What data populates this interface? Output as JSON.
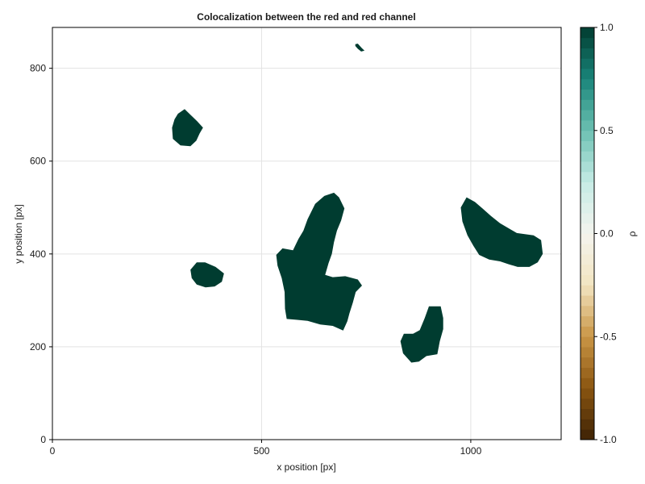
{
  "chart_data": {
    "type": "heatmap",
    "title": "Colocalization between the red and red channel",
    "xlabel": "x position [px]",
    "ylabel": "y position [px]",
    "xlim": [
      0,
      1216
    ],
    "ylim": [
      0,
      888
    ],
    "x_ticks": [
      0,
      500,
      1000
    ],
    "y_ticks": [
      0,
      200,
      400,
      600,
      800
    ],
    "grid": true,
    "colorbar": {
      "label": "ρ",
      "range": [
        -1.0,
        1.0
      ],
      "ticks": [
        "-1.0",
        "-0.5",
        "0.0",
        "0.5",
        "1.0"
      ],
      "colormap": "BrBG",
      "stops": [
        "#3d2205",
        "#8a5510",
        "#c99545",
        "#f2e4c0",
        "#f4f4ee",
        "#c5ebe5",
        "#6cc0b2",
        "#1a857a",
        "#003c30"
      ]
    },
    "regions": [
      {
        "value": 1.0,
        "outline": [
          [
            730,
            853
          ],
          [
            740,
            843
          ],
          [
            746,
            838
          ],
          [
            738,
            836
          ],
          [
            730,
            842
          ],
          [
            724,
            848
          ],
          [
            724,
            852
          ]
        ]
      },
      {
        "value": 1.0,
        "outline": [
          [
            300,
            702
          ],
          [
            316,
            712
          ],
          [
            330,
            700
          ],
          [
            346,
            686
          ],
          [
            360,
            672
          ],
          [
            352,
            660
          ],
          [
            344,
            644
          ],
          [
            330,
            632
          ],
          [
            306,
            634
          ],
          [
            288,
            648
          ],
          [
            286,
            672
          ],
          [
            292,
            690
          ]
        ]
      },
      {
        "value": 1.0,
        "outline": [
          [
            345,
            382
          ],
          [
            365,
            382
          ],
          [
            390,
            372
          ],
          [
            410,
            358
          ],
          [
            405,
            340
          ],
          [
            388,
            330
          ],
          [
            366,
            328
          ],
          [
            345,
            334
          ],
          [
            333,
            348
          ],
          [
            330,
            366
          ]
        ]
      },
      {
        "value": 1.0,
        "outline": [
          [
            550,
            412
          ],
          [
            575,
            408
          ],
          [
            588,
            432
          ],
          [
            600,
            450
          ],
          [
            610,
            475
          ],
          [
            628,
            508
          ],
          [
            650,
            525
          ],
          [
            673,
            532
          ],
          [
            685,
            522
          ],
          [
            698,
            498
          ],
          [
            690,
            472
          ],
          [
            680,
            450
          ],
          [
            673,
            425
          ],
          [
            668,
            400
          ],
          [
            660,
            380
          ],
          [
            652,
            355
          ],
          [
            670,
            350
          ],
          [
            700,
            352
          ],
          [
            730,
            345
          ],
          [
            740,
            332
          ],
          [
            725,
            318
          ],
          [
            718,
            295
          ],
          [
            710,
            272
          ],
          [
            705,
            255
          ],
          [
            695,
            235
          ],
          [
            670,
            245
          ],
          [
            640,
            248
          ],
          [
            610,
            256
          ],
          [
            585,
            258
          ],
          [
            560,
            260
          ],
          [
            556,
            282
          ],
          [
            555,
            318
          ],
          [
            548,
            348
          ],
          [
            538,
            375
          ],
          [
            535,
            398
          ]
        ]
      },
      {
        "value": 1.0,
        "outline": [
          [
            990,
            522
          ],
          [
            1010,
            512
          ],
          [
            1028,
            498
          ],
          [
            1048,
            482
          ],
          [
            1070,
            466
          ],
          [
            1110,
            445
          ],
          [
            1150,
            440
          ],
          [
            1168,
            430
          ],
          [
            1172,
            400
          ],
          [
            1160,
            382
          ],
          [
            1140,
            372
          ],
          [
            1112,
            372
          ],
          [
            1090,
            378
          ],
          [
            1070,
            384
          ],
          [
            1044,
            388
          ],
          [
            1020,
            398
          ],
          [
            1006,
            418
          ],
          [
            992,
            440
          ],
          [
            980,
            470
          ],
          [
            976,
            500
          ]
        ]
      },
      {
        "value": 1.0,
        "outline": [
          [
            900,
            287
          ],
          [
            928,
            287
          ],
          [
            934,
            262
          ],
          [
            934,
            238
          ],
          [
            926,
            212
          ],
          [
            920,
            184
          ],
          [
            894,
            180
          ],
          [
            876,
            168
          ],
          [
            858,
            166
          ],
          [
            838,
            186
          ],
          [
            832,
            212
          ],
          [
            840,
            228
          ],
          [
            862,
            228
          ],
          [
            878,
            236
          ],
          [
            890,
            262
          ]
        ]
      }
    ]
  }
}
